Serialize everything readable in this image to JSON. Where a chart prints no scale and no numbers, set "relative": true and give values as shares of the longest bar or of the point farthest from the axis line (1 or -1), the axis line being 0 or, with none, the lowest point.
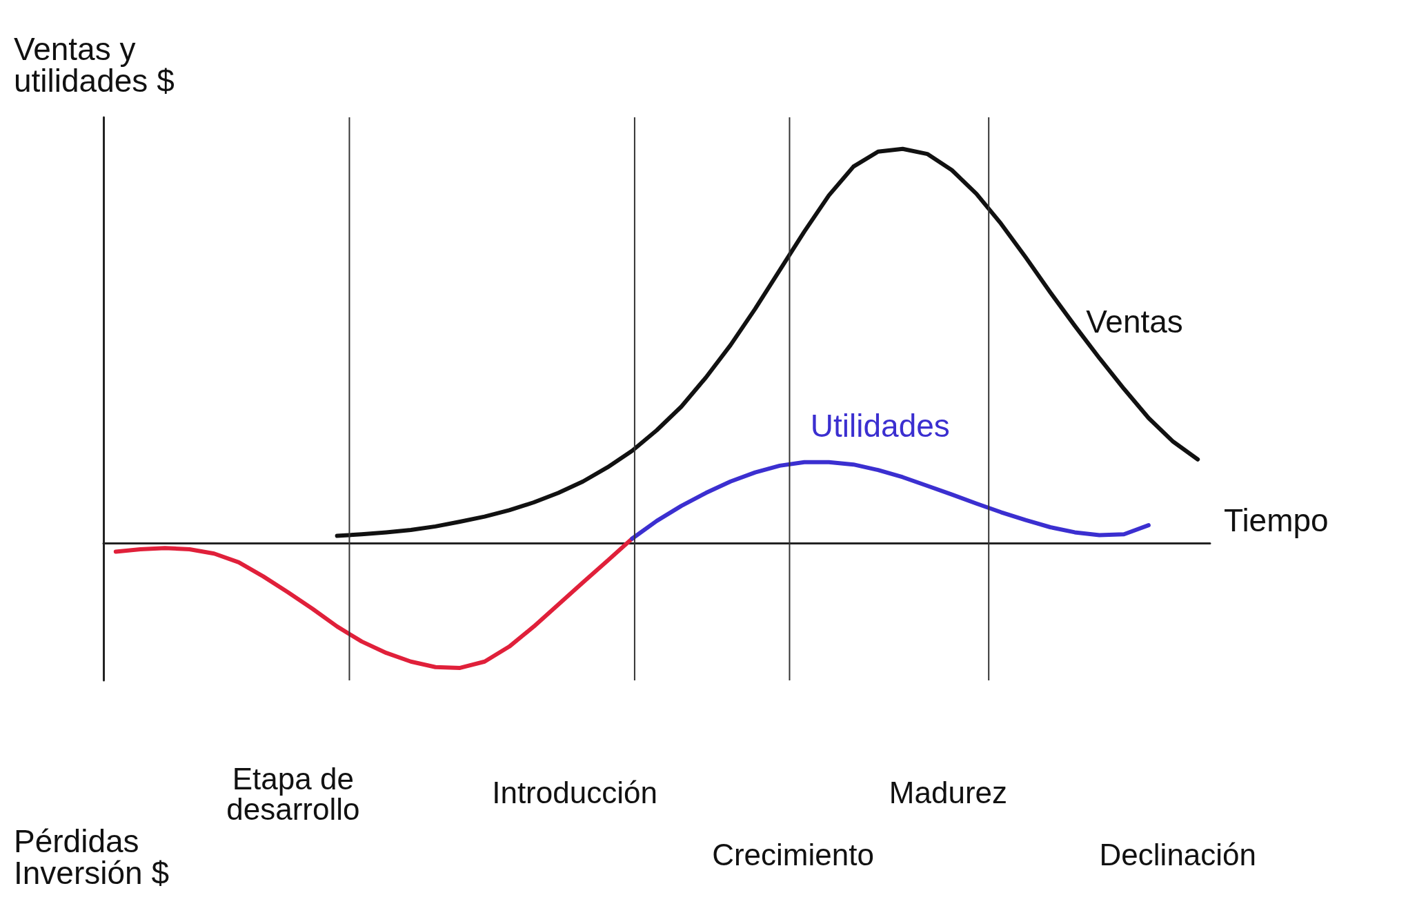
{
  "chart_data": {
    "type": "line",
    "relative": true,
    "xlabel": "Tiempo",
    "ylabel": "Ventas y\nutilidades $",
    "categories": [
      null,
      null,
      null,
      null,
      null,
      null,
      null,
      null,
      null,
      null,
      null,
      null,
      null,
      null,
      null,
      null,
      null,
      null,
      null,
      null,
      null,
      null,
      null,
      null,
      null,
      null,
      null,
      null,
      null,
      null,
      null,
      null,
      null,
      null,
      null,
      null,
      null,
      null,
      null,
      null,
      null,
      null,
      null,
      null,
      null
    ],
    "series": [
      {
        "name": "Ventas",
        "color": "#111111",
        "values": [
          null,
          null,
          null,
          null,
          null,
          null,
          null,
          null,
          null,
          0.018,
          0.022,
          0.027,
          0.033,
          0.042,
          0.054,
          0.067,
          0.083,
          0.103,
          0.127,
          0.156,
          0.192,
          0.234,
          0.286,
          0.346,
          0.42,
          0.502,
          0.594,
          0.692,
          0.79,
          0.882,
          0.955,
          0.993,
          1,
          0.987,
          0.946,
          0.886,
          0.81,
          0.725,
          0.636,
          0.551,
          0.469,
          0.391,
          0.317,
          0.257,
          0.212
        ]
      },
      {
        "color": "#e0203a",
        "values": [
          -0.022,
          -0.016,
          -0.013,
          -0.016,
          -0.027,
          -0.049,
          -0.085,
          -0.125,
          -0.167,
          -0.212,
          -0.25,
          -0.279,
          -0.301,
          -0.315,
          -0.317,
          -0.301,
          -0.263,
          -0.212,
          -0.156,
          -0.1,
          -0.045,
          0.011,
          null,
          null,
          null,
          null,
          null,
          null,
          null,
          null,
          null,
          null,
          null,
          null,
          null,
          null,
          null,
          null,
          null,
          null,
          null,
          null,
          null,
          null,
          null
        ]
      },
      {
        "name": "Utilidades",
        "color": "#3b2fd0",
        "values": [
          null,
          null,
          null,
          null,
          null,
          null,
          null,
          null,
          null,
          null,
          null,
          null,
          null,
          null,
          null,
          null,
          null,
          null,
          null,
          null,
          null,
          0.011,
          0.056,
          0.094,
          0.127,
          0.156,
          0.179,
          0.196,
          0.205,
          0.205,
          0.199,
          0.185,
          0.167,
          0.145,
          0.123,
          0.1,
          0.078,
          0.058,
          0.04,
          0.027,
          0.02,
          0.022,
          0.045,
          null,
          null
        ]
      }
    ],
    "annotations": [
      "Etapa de\ndesarrollo",
      "Introducción",
      "Crecimiento",
      "Madurez",
      "Declinación",
      "Pérdidas\nInversión $"
    ]
  }
}
